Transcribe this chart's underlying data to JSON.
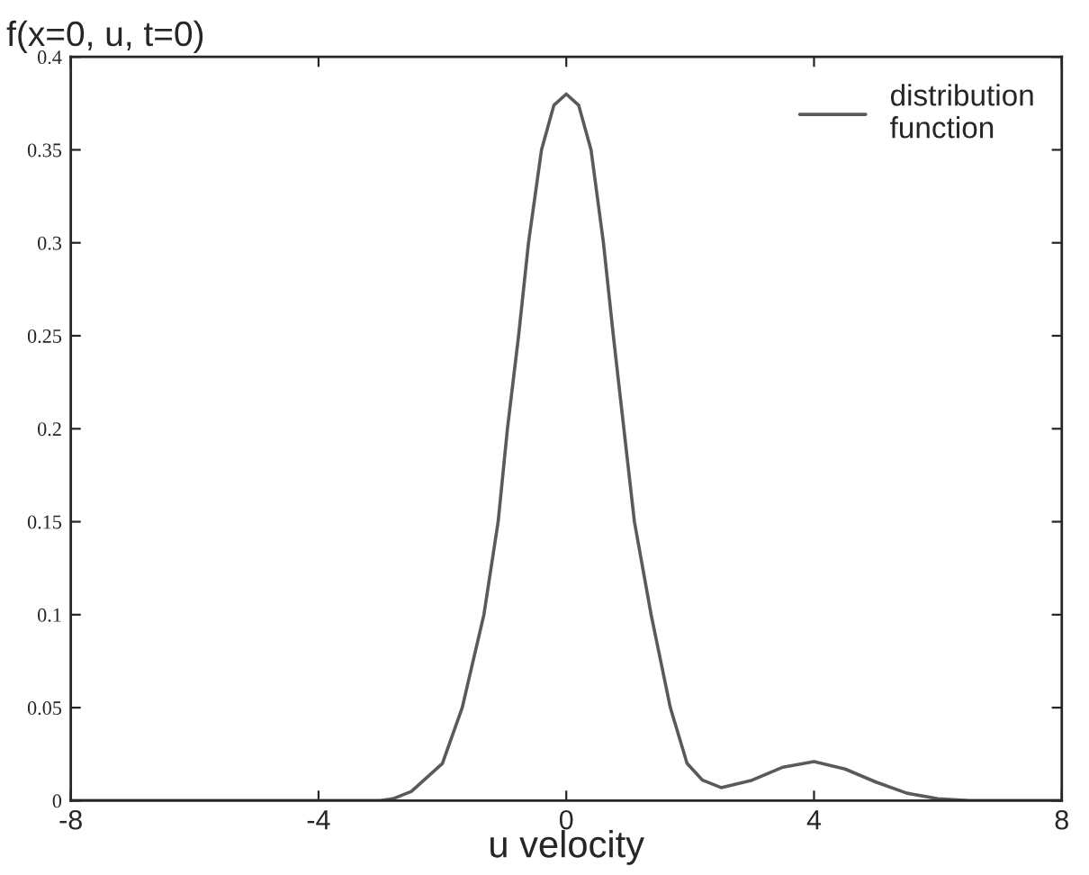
{
  "chart_data": {
    "type": "line",
    "ylabel": "f(x=0, u, t=0)",
    "xlabel": "u velocity",
    "x": [
      -8,
      -3,
      -2.8,
      -2.5,
      -2,
      -1.68,
      -1.33,
      -1.1,
      -0.95,
      -0.77,
      -0.61,
      -0.4,
      -0.2,
      0,
      0.2,
      0.4,
      0.6,
      0.76,
      0.93,
      1.1,
      1.37,
      1.68,
      1.95,
      2.2,
      2.5,
      3,
      3.5,
      4,
      4.5,
      5,
      5.5,
      6,
      6.5,
      8
    ],
    "series": [
      {
        "name": "distribution\nfunction",
        "color": "#5a5a5a",
        "values": [
          0,
          0,
          0.001,
          0.005,
          0.02,
          0.05,
          0.1,
          0.15,
          0.2,
          0.25,
          0.3,
          0.35,
          0.374,
          0.38,
          0.374,
          0.35,
          0.3,
          0.25,
          0.2,
          0.15,
          0.1,
          0.05,
          0.02,
          0.011,
          0.007,
          0.011,
          0.018,
          0.021,
          0.017,
          0.01,
          0.004,
          0.001,
          0,
          0
        ]
      }
    ],
    "xlim": [
      -8,
      8
    ],
    "ylim": [
      0,
      0.4
    ],
    "xticks": [
      -8,
      -4,
      0,
      4,
      8
    ],
    "yticks": [
      0,
      0.05,
      0.1,
      0.15,
      0.2,
      0.25,
      0.3,
      0.35,
      0.4
    ],
    "grid": false,
    "legend": "top right",
    "marker": "none",
    "line_style": "solid"
  }
}
